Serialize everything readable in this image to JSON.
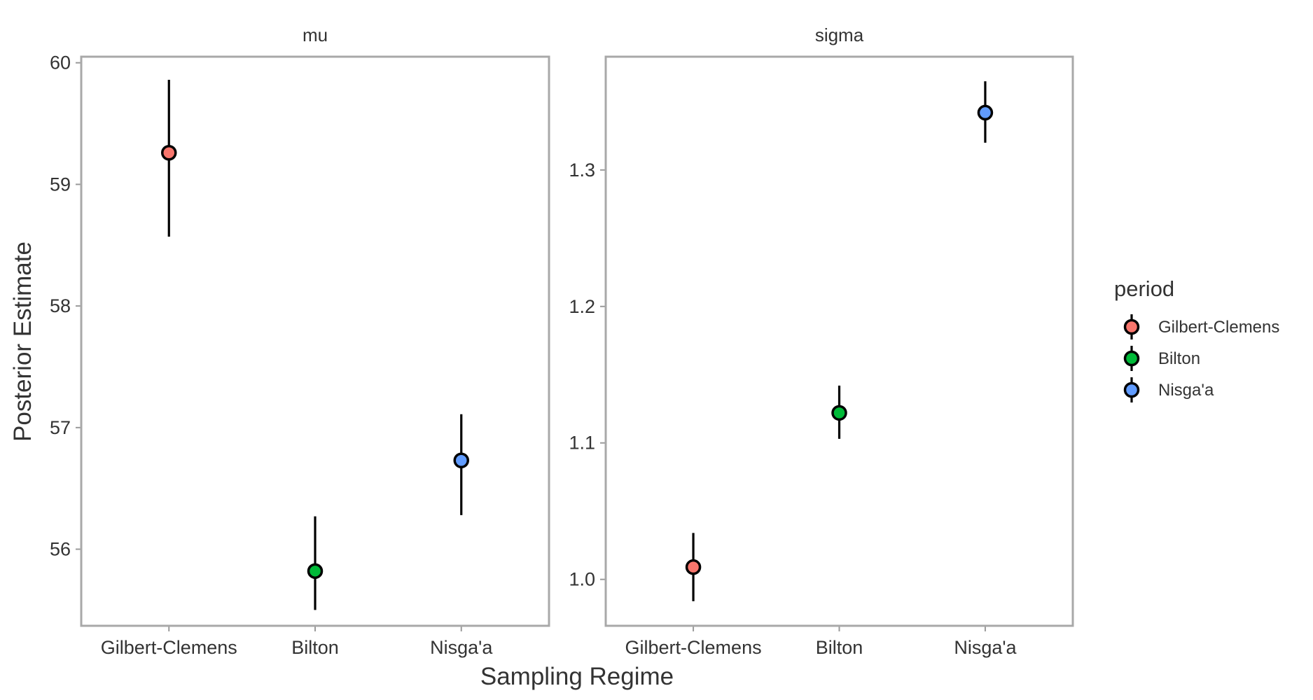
{
  "chart_data": {
    "type": "scatter",
    "subtype": "pointrange-faceted",
    "xlabel": "Sampling Regime",
    "ylabel": "Posterior Estimate",
    "categories": [
      "Gilbert-Clemens",
      "Bilton",
      "Nisga'a"
    ],
    "legend": {
      "title": "period",
      "placement": "right",
      "entries": [
        {
          "label": "Gilbert-Clemens",
          "color": "#F8766D"
        },
        {
          "label": "Bilton",
          "color": "#00BA38"
        },
        {
          "label": "Nisga'a",
          "color": "#619CFF"
        }
      ]
    },
    "grid": false,
    "panels": [
      {
        "title": "mu",
        "ylim": [
          55.37,
          60.05
        ],
        "yticks": [
          56,
          57,
          58,
          59,
          60
        ],
        "points": [
          {
            "category": "Gilbert-Clemens",
            "y": 59.26,
            "low": 58.57,
            "high": 59.86
          },
          {
            "category": "Bilton",
            "y": 55.82,
            "low": 55.5,
            "high": 56.27
          },
          {
            "category": "Nisga'a",
            "y": 56.73,
            "low": 56.28,
            "high": 57.11
          }
        ]
      },
      {
        "title": "sigma",
        "ylim": [
          0.966,
          1.383
        ],
        "yticks": [
          1.0,
          1.1,
          1.2,
          1.3
        ],
        "ytick_labels": [
          "1.0",
          "1.1",
          "1.2",
          "1.3"
        ],
        "points": [
          {
            "category": "Gilbert-Clemens",
            "y": 1.009,
            "low": 0.984,
            "high": 1.034
          },
          {
            "category": "Bilton",
            "y": 1.122,
            "low": 1.103,
            "high": 1.142
          },
          {
            "category": "Nisga'a",
            "y": 1.342,
            "low": 1.32,
            "high": 1.365
          }
        ]
      }
    ]
  }
}
